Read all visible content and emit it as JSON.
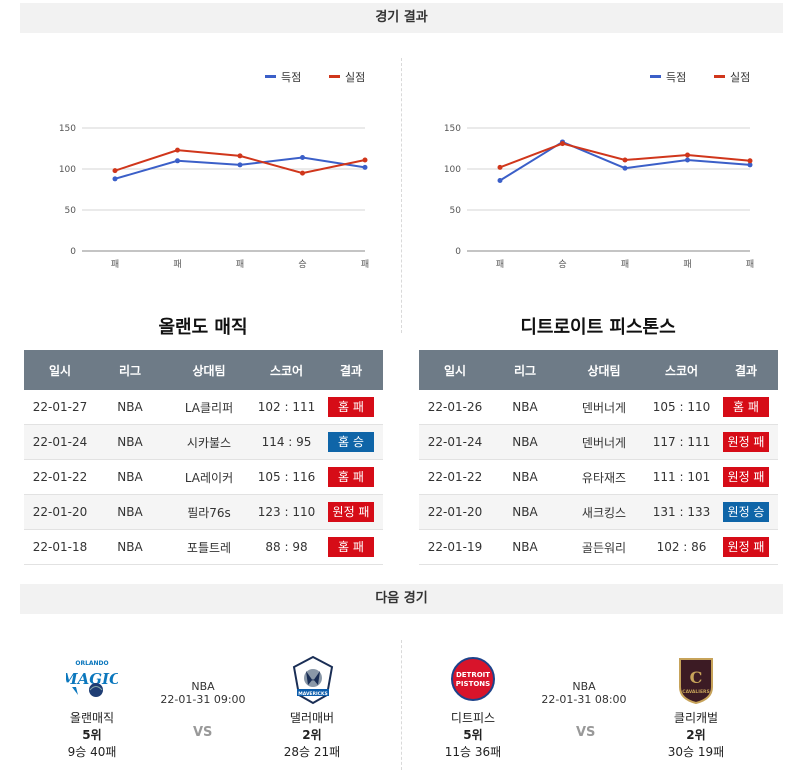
{
  "sections": {
    "results_title": "경기 결과",
    "next_title": "다음 경기"
  },
  "colors": {
    "score": "#3b5fc8",
    "allowed": "#d0361b",
    "header_bg": "#6e7b87",
    "lose_badge": "#d60c17",
    "win_badge": "#0f65a8"
  },
  "charts": [
    {
      "chart_data": {
        "type": "line",
        "categories": [
          "패",
          "패",
          "패",
          "승",
          "패"
        ],
        "series": [
          {
            "name": "득점",
            "values": [
              88,
              110,
              105,
              114,
              102
            ]
          },
          {
            "name": "실점",
            "values": [
              98,
              123,
              116,
              95,
              111
            ]
          }
        ],
        "ylim": [
          0,
          150
        ],
        "yticks": [
          "0",
          "50",
          "100",
          "150"
        ],
        "legend": "top-right",
        "grid": true
      }
    },
    {
      "chart_data": {
        "type": "line",
        "categories": [
          "패",
          "승",
          "패",
          "패",
          "패"
        ],
        "series": [
          {
            "name": "득점",
            "values": [
              86,
              133,
              101,
              111,
              105
            ]
          },
          {
            "name": "실점",
            "values": [
              102,
              131,
              111,
              117,
              110
            ]
          }
        ],
        "ylim": [
          0,
          150
        ],
        "yticks": [
          "0",
          "50",
          "100",
          "150"
        ],
        "legend": "top-right",
        "grid": true
      }
    }
  ],
  "teams": [
    {
      "title": "올랜도 매직",
      "headers": [
        "일시",
        "리그",
        "상대팀",
        "스코어",
        "결과"
      ],
      "rows": [
        {
          "date": "22-01-27",
          "league": "NBA",
          "opponent": "LA클리퍼",
          "score": "102 : 111",
          "result": "홈 패",
          "win": false
        },
        {
          "date": "22-01-24",
          "league": "NBA",
          "opponent": "시카불스",
          "score": "114 : 95",
          "result": "홈 승",
          "win": true
        },
        {
          "date": "22-01-22",
          "league": "NBA",
          "opponent": "LA레이커",
          "score": "105 : 116",
          "result": "홈 패",
          "win": false
        },
        {
          "date": "22-01-20",
          "league": "NBA",
          "opponent": "필라76s",
          "score": "123 : 110",
          "result": "원정 패",
          "win": false
        },
        {
          "date": "22-01-18",
          "league": "NBA",
          "opponent": "포틀트레",
          "score": "88 : 98",
          "result": "홈 패",
          "win": false
        }
      ]
    },
    {
      "title": "디트로이트 피스톤스",
      "headers": [
        "일시",
        "리그",
        "상대팀",
        "스코어",
        "결과"
      ],
      "rows": [
        {
          "date": "22-01-26",
          "league": "NBA",
          "opponent": "덴버너게",
          "score": "105 : 110",
          "result": "홈 패",
          "win": false
        },
        {
          "date": "22-01-24",
          "league": "NBA",
          "opponent": "덴버너게",
          "score": "117 : 111",
          "result": "원정 패",
          "win": false
        },
        {
          "date": "22-01-22",
          "league": "NBA",
          "opponent": "유타재즈",
          "score": "111 : 101",
          "result": "원정 패",
          "win": false
        },
        {
          "date": "22-01-20",
          "league": "NBA",
          "opponent": "새크킹스",
          "score": "131 : 133",
          "result": "원정 승",
          "win": true
        },
        {
          "date": "22-01-19",
          "league": "NBA",
          "opponent": "골든워리",
          "score": "102 : 86",
          "result": "원정 패",
          "win": false
        }
      ]
    }
  ],
  "next_games": [
    {
      "league": "NBA",
      "datetime": "22-01-31 09:00",
      "vs": "VS",
      "home": {
        "name": "올랜매직",
        "rank": "5위",
        "record": "9승 40패",
        "logo_icon": "orlando-magic-logo"
      },
      "away": {
        "name": "댈러매버",
        "rank": "2위",
        "record": "28승 21패",
        "logo_icon": "dallas-mavericks-logo"
      }
    },
    {
      "league": "NBA",
      "datetime": "22-01-31 08:00",
      "vs": "VS",
      "home": {
        "name": "디트피스",
        "rank": "5위",
        "record": "11승 36패",
        "logo_icon": "detroit-pistons-logo"
      },
      "away": {
        "name": "클리캐벌",
        "rank": "2위",
        "record": "30승 19패",
        "logo_icon": "cleveland-cavaliers-logo"
      }
    }
  ],
  "logo_text": {
    "orlando": "ORLANDO",
    "magic": "MAGIC",
    "detroit": "DETROIT",
    "pistons": "PISTONS",
    "cavaliers": "CAVALIERS",
    "cavs_c": "C",
    "mavs": "MAVERICKS"
  }
}
